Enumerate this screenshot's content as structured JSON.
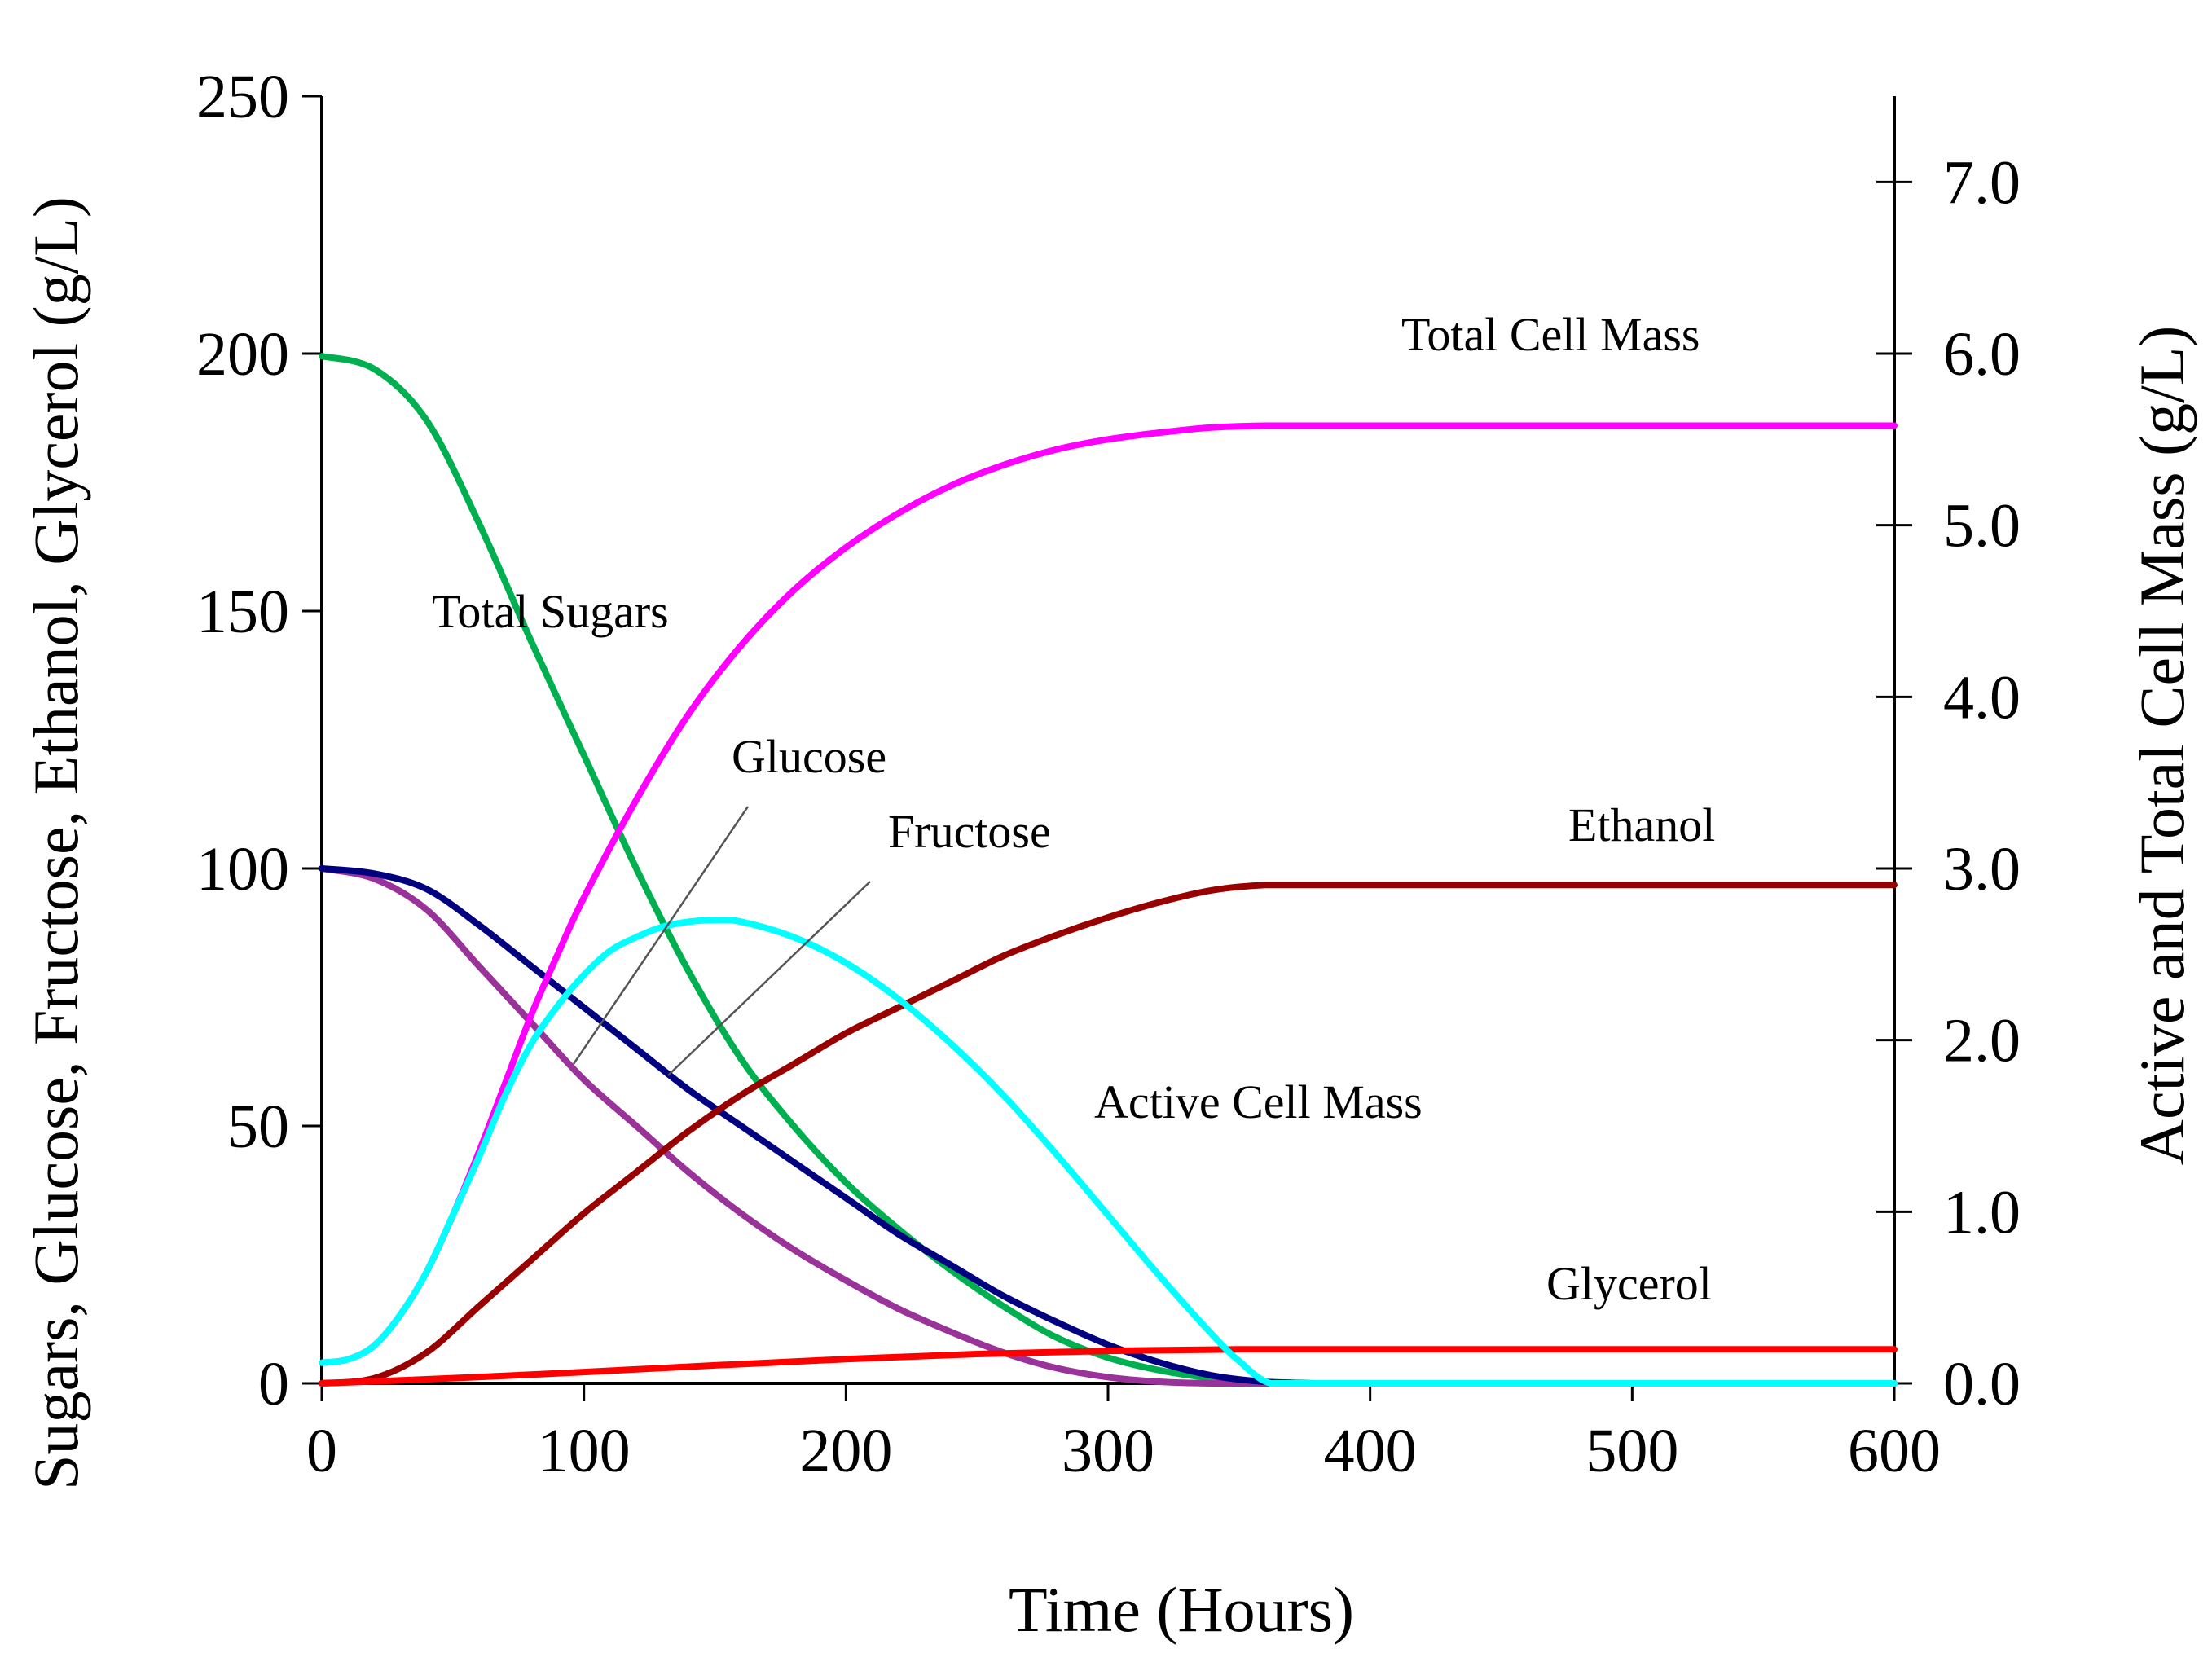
{
  "chart_data": {
    "type": "line",
    "title": "",
    "xlabel": "Time (Hours)",
    "ylabel": "Sugars,  Glucose,  Fructose,  Ethanol,  Glycerol (g/L)",
    "y2label": "Active and Total Cell Mass (g/L)",
    "xlim": [
      0,
      600
    ],
    "ylim": [
      0,
      250
    ],
    "y2lim": [
      0,
      7.5
    ],
    "x_ticks": [
      "0",
      "100",
      "200",
      "300",
      "400",
      "500",
      "600"
    ],
    "y_ticks": [
      "0",
      "50",
      "100",
      "150",
      "200",
      "250"
    ],
    "y2_ticks": [
      "0.0",
      "1.0",
      "2.0",
      "3.0",
      "4.0",
      "5.0",
      "6.0",
      "7.0"
    ],
    "grid": false,
    "series": [
      {
        "name": "Total Sugars",
        "axis": "left",
        "color": "#00b050",
        "x": [
          0,
          20,
          40,
          60,
          80,
          100,
          120,
          140,
          160,
          180,
          200,
          220,
          240,
          260,
          280,
          300,
          320,
          340,
          360,
          380,
          400,
          450,
          500,
          550,
          600
        ],
        "y": [
          199.5,
          197,
          187,
          167,
          144,
          122,
          100,
          80,
          63,
          50,
          39,
          30,
          22,
          15,
          9,
          5,
          2.5,
          1,
          0.3,
          0,
          0,
          0,
          0,
          0,
          0
        ]
      },
      {
        "name": "Glucose",
        "axis": "left",
        "color": "#000080",
        "x": [
          0,
          20,
          40,
          60,
          80,
          100,
          120,
          140,
          160,
          180,
          200,
          220,
          240,
          260,
          280,
          300,
          320,
          340,
          360,
          380,
          400,
          450,
          500,
          550,
          600
        ],
        "y": [
          100,
          99,
          96,
          89,
          81,
          73,
          65,
          57,
          50,
          43,
          36,
          29,
          23,
          17,
          12,
          7.5,
          4,
          1.5,
          0.3,
          0,
          0,
          0,
          0,
          0,
          0
        ]
      },
      {
        "name": "Fructose",
        "axis": "left",
        "color": "#993399",
        "x": [
          0,
          20,
          40,
          60,
          80,
          100,
          120,
          140,
          160,
          180,
          200,
          220,
          240,
          260,
          280,
          300,
          320,
          340,
          360,
          380,
          400,
          450,
          500,
          550,
          600
        ],
        "y": [
          100,
          98,
          92,
          81,
          70,
          59,
          50,
          41,
          33,
          26,
          20,
          14.5,
          10,
          6,
          3,
          1.2,
          0.3,
          0,
          0,
          0,
          0,
          0,
          0,
          0,
          0
        ]
      },
      {
        "name": "Ethanol",
        "axis": "left",
        "color": "#990000",
        "x": [
          0,
          20,
          40,
          60,
          80,
          100,
          120,
          140,
          160,
          180,
          200,
          220,
          240,
          260,
          280,
          300,
          320,
          340,
          360,
          380,
          400,
          450,
          500,
          550,
          600
        ],
        "y": [
          0,
          1,
          6,
          15,
          24,
          33,
          41,
          49,
          56,
          62,
          68,
          73,
          78,
          83,
          87,
          90.5,
          93.5,
          95.8,
          96.8,
          96.8,
          96.8,
          96.8,
          96.8,
          96.8,
          96.8
        ]
      },
      {
        "name": "Glycerol",
        "axis": "left",
        "color": "#ff0000",
        "x": [
          0,
          50,
          100,
          150,
          200,
          250,
          300,
          350,
          360,
          400,
          450,
          500,
          550,
          600
        ],
        "y": [
          0,
          1,
          2.2,
          3.5,
          4.7,
          5.7,
          6.3,
          6.6,
          6.6,
          6.6,
          6.6,
          6.6,
          6.6,
          6.6
        ]
      },
      {
        "name": "Total Cell Mass",
        "axis": "right",
        "color": "#ff00ff",
        "x": [
          0,
          10,
          20,
          30,
          40,
          50,
          60,
          70,
          80,
          90,
          100,
          120,
          140,
          160,
          180,
          200,
          220,
          240,
          260,
          280,
          300,
          320,
          340,
          360,
          380,
          400,
          450,
          500,
          550,
          600
        ],
        "y": [
          0.12,
          0.14,
          0.22,
          0.4,
          0.65,
          0.98,
          1.35,
          1.75,
          2.15,
          2.5,
          2.83,
          3.4,
          3.9,
          4.3,
          4.62,
          4.87,
          5.07,
          5.23,
          5.35,
          5.44,
          5.5,
          5.54,
          5.57,
          5.58,
          5.58,
          5.58,
          5.58,
          5.58,
          5.58,
          5.58
        ]
      },
      {
        "name": "Active Cell Mass",
        "axis": "right",
        "color": "#00ffff",
        "x": [
          0,
          10,
          20,
          30,
          40,
          50,
          60,
          70,
          80,
          90,
          100,
          110,
          120,
          130,
          140,
          150,
          160,
          180,
          200,
          220,
          240,
          260,
          280,
          300,
          320,
          340,
          350,
          362,
          380,
          400,
          450,
          500,
          550,
          600
        ],
        "y": [
          0.12,
          0.14,
          0.22,
          0.4,
          0.65,
          0.98,
          1.32,
          1.68,
          1.98,
          2.2,
          2.38,
          2.52,
          2.6,
          2.66,
          2.69,
          2.7,
          2.69,
          2.6,
          2.45,
          2.24,
          1.98,
          1.68,
          1.34,
          0.98,
          0.62,
          0.28,
          0.13,
          0,
          0,
          0,
          0,
          0,
          0,
          0
        ]
      }
    ],
    "annotations": {
      "total_sugars": "Total Sugars",
      "glucose": "Glucose",
      "fructose": "Fructose",
      "total_cell_mass": "Total Cell Mass",
      "ethanol": "Ethanol",
      "active_cell_mass": "Active Cell Mass",
      "glycerol": "Glycerol"
    }
  }
}
